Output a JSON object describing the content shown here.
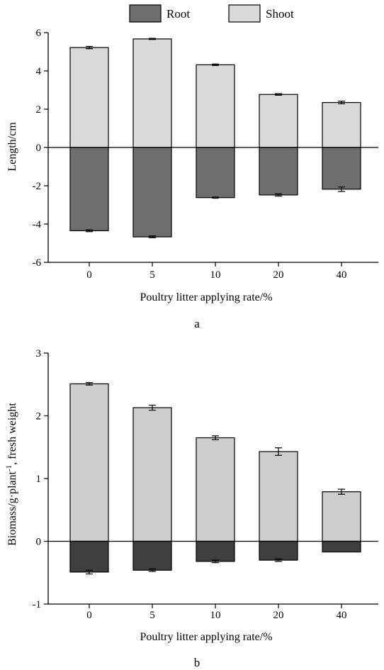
{
  "legend": {
    "root": {
      "label": "Root",
      "color": "#6e6e6e"
    },
    "shoot": {
      "label": "Shoot",
      "color": "#d9d9d9"
    }
  },
  "chart_data": [
    {
      "type": "bar",
      "stacked": "diverging",
      "panel_label": "a",
      "categories": [
        "0",
        "5",
        "10",
        "20",
        "40"
      ],
      "series": [
        {
          "name": "Shoot",
          "values": [
            5.22,
            5.67,
            4.32,
            2.77,
            2.35
          ],
          "errors": [
            0.06,
            0.03,
            0.04,
            0.04,
            0.07
          ]
        },
        {
          "name": "Root",
          "values": [
            -4.35,
            -4.67,
            -2.62,
            -2.48,
            -2.18
          ],
          "errors": [
            0.05,
            0.05,
            0.03,
            0.06,
            0.12
          ]
        }
      ],
      "xlabel": "Poultry litter applying rate/%",
      "ylabel": "Length/cm",
      "ylim": [
        -6,
        6
      ],
      "yticks": [
        "-6",
        "-4",
        "-2",
        "0",
        "2",
        "4",
        "6"
      ],
      "colors": {
        "Shoot": "#d9d9d9",
        "Root": "#6e6e6e"
      },
      "legend_position": "top-center"
    },
    {
      "type": "bar",
      "stacked": "diverging",
      "panel_label": "b",
      "categories": [
        "0",
        "5",
        "10",
        "20",
        "40"
      ],
      "series": [
        {
          "name": "Shoot",
          "values": [
            2.51,
            2.13,
            1.65,
            1.43,
            0.79
          ],
          "errors": [
            0.02,
            0.04,
            0.03,
            0.06,
            0.04
          ]
        },
        {
          "name": "Root",
          "values": [
            -0.49,
            -0.46,
            -0.32,
            -0.3,
            -0.17
          ],
          "errors": [
            0.03,
            0.02,
            0.02,
            0.02,
            0.0
          ]
        }
      ],
      "xlabel": "Poultry litter applying rate/%",
      "ylabel": {
        "prefix": "Biomass/g·plant",
        "superscript": "-1",
        "suffix": ", fresh weight"
      },
      "ylim": [
        -1,
        3
      ],
      "yticks": [
        "-1",
        "0",
        "1",
        "2",
        "3"
      ],
      "colors": {
        "Shoot": "#cdcdcd",
        "Root": "#3f3f3f"
      }
    }
  ]
}
